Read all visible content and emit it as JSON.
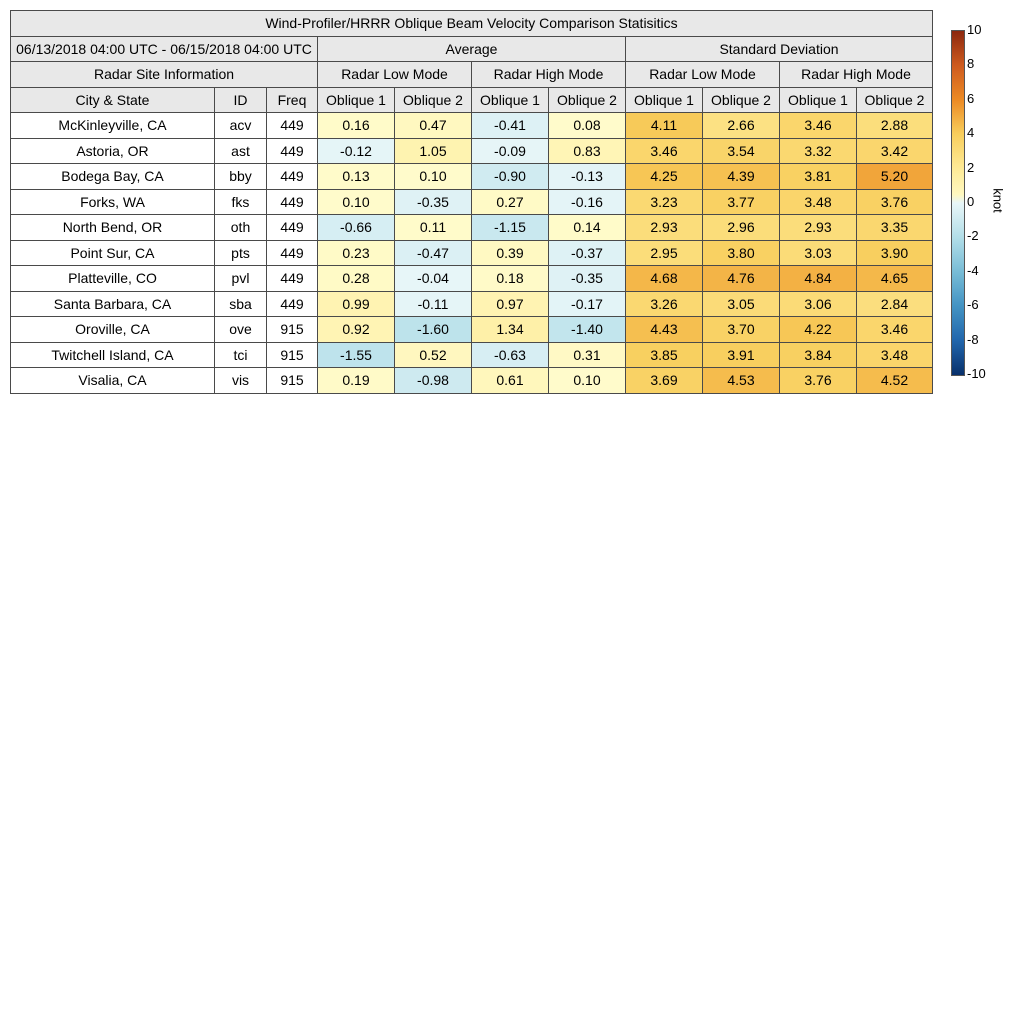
{
  "title": "Wind-Profiler/HRRR Oblique Beam Velocity Comparison Statisitics",
  "date_range": "06/13/2018 04:00 UTC - 06/15/2018 04:00 UTC",
  "group_average": "Average",
  "group_std": "Standard Deviation",
  "site_info_label": "Radar Site Information",
  "low_mode_label": "Radar Low Mode",
  "high_mode_label": "Radar High Mode",
  "col_city": "City & State",
  "col_id": "ID",
  "col_freq": "Freq",
  "oblique1": "Oblique 1",
  "oblique2": "Oblique 2",
  "colorbar": {
    "unit": "knot",
    "ticks": [
      "10",
      "8",
      "6",
      "4",
      "2",
      "0",
      "-2",
      "-4",
      "-6",
      "-8",
      "-10"
    ]
  },
  "chart_data": {
    "type": "table",
    "title": "Wind-Profiler/HRRR Oblique Beam Velocity Comparison Statisitics",
    "color_range": [
      -10,
      10
    ],
    "columns": [
      "City & State",
      "ID",
      "Freq",
      "Average Radar Low Mode Oblique 1",
      "Average Radar Low Mode Oblique 2",
      "Average Radar High Mode Oblique 1",
      "Average Radar High Mode Oblique 2",
      "Standard Deviation Radar Low Mode Oblique 1",
      "Standard Deviation Radar Low Mode Oblique 2",
      "Standard Deviation Radar High Mode Oblique 1",
      "Standard Deviation Radar High Mode Oblique 2"
    ],
    "rows": [
      {
        "city": "McKinleyville, CA",
        "id": "acv",
        "freq": "449",
        "values": [
          "0.16",
          "0.47",
          "-0.41",
          "0.08",
          "4.11",
          "2.66",
          "3.46",
          "2.88"
        ]
      },
      {
        "city": "Astoria, OR",
        "id": "ast",
        "freq": "449",
        "values": [
          "-0.12",
          "1.05",
          "-0.09",
          "0.83",
          "3.46",
          "3.54",
          "3.32",
          "3.42"
        ]
      },
      {
        "city": "Bodega Bay, CA",
        "id": "bby",
        "freq": "449",
        "values": [
          "0.13",
          "0.10",
          "-0.90",
          "-0.13",
          "4.25",
          "4.39",
          "3.81",
          "5.20"
        ]
      },
      {
        "city": "Forks, WA",
        "id": "fks",
        "freq": "449",
        "values": [
          "0.10",
          "-0.35",
          "0.27",
          "-0.16",
          "3.23",
          "3.77",
          "3.48",
          "3.76"
        ]
      },
      {
        "city": "North Bend, OR",
        "id": "oth",
        "freq": "449",
        "values": [
          "-0.66",
          "0.11",
          "-1.15",
          "0.14",
          "2.93",
          "2.96",
          "2.93",
          "3.35"
        ]
      },
      {
        "city": "Point Sur, CA",
        "id": "pts",
        "freq": "449",
        "values": [
          "0.23",
          "-0.47",
          "0.39",
          "-0.37",
          "2.95",
          "3.80",
          "3.03",
          "3.90"
        ]
      },
      {
        "city": "Platteville, CO",
        "id": "pvl",
        "freq": "449",
        "values": [
          "0.28",
          "-0.04",
          "0.18",
          "-0.35",
          "4.68",
          "4.76",
          "4.84",
          "4.65"
        ]
      },
      {
        "city": "Santa Barbara, CA",
        "id": "sba",
        "freq": "449",
        "values": [
          "0.99",
          "-0.11",
          "0.97",
          "-0.17",
          "3.26",
          "3.05",
          "3.06",
          "2.84"
        ]
      },
      {
        "city": "Oroville, CA",
        "id": "ove",
        "freq": "915",
        "values": [
          "0.92",
          "-1.60",
          "1.34",
          "-1.40",
          "4.43",
          "3.70",
          "4.22",
          "3.46"
        ]
      },
      {
        "city": "Twitchell Island, CA",
        "id": "tci",
        "freq": "915",
        "values": [
          "-1.55",
          "0.52",
          "-0.63",
          "0.31",
          "3.85",
          "3.91",
          "3.84",
          "3.48"
        ]
      },
      {
        "city": "Visalia, CA",
        "id": "vis",
        "freq": "915",
        "values": [
          "0.19",
          "-0.98",
          "0.61",
          "0.10",
          "3.69",
          "4.53",
          "3.76",
          "4.52"
        ]
      }
    ]
  }
}
